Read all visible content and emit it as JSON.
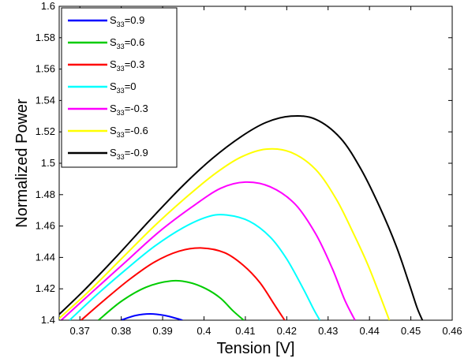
{
  "chart_data": {
    "type": "line",
    "xlabel": "Tension [V]",
    "ylabel": "Normalized Power",
    "xlim": [
      0.365,
      0.46
    ],
    "ylim": [
      1.4,
      1.6
    ],
    "xticks": [
      0.37,
      0.38,
      0.39,
      0.4,
      0.41,
      0.42,
      0.43,
      0.44,
      0.45,
      0.46
    ],
    "xtick_labels": [
      "0.37",
      "0.38",
      "0.39",
      "0.4",
      "0.41",
      "0.42",
      "0.43",
      "0.44",
      "0.45",
      "0.46"
    ],
    "yticks": [
      1.4,
      1.42,
      1.44,
      1.46,
      1.48,
      1.5,
      1.52,
      1.54,
      1.56,
      1.58,
      1.6
    ],
    "ytick_labels": [
      "1.4",
      "1.42",
      "1.44",
      "1.46",
      "1.48",
      "1.5",
      "1.52",
      "1.54",
      "1.56",
      "1.58",
      "1.6"
    ],
    "grid": false,
    "legend_position": "top-left",
    "series": [
      {
        "name_base": "S",
        "name_sub": "33",
        "name_value": "=0.9",
        "color": "#0000ff",
        "x": [
          0.3799,
          0.3835,
          0.387,
          0.3905,
          0.3935,
          0.3948
        ],
        "y": [
          1.4,
          1.403,
          1.404,
          1.403,
          1.401,
          1.4
        ]
      },
      {
        "name_base": "S",
        "name_sub": "33",
        "name_value": "=0.6",
        "color": "#00cc00",
        "x": [
          0.3745,
          0.38,
          0.386,
          0.392,
          0.3965,
          0.4005,
          0.404,
          0.407,
          0.4096
        ],
        "y": [
          1.4,
          1.412,
          1.421,
          1.425,
          1.424,
          1.42,
          1.414,
          1.406,
          1.4
        ]
      },
      {
        "name_base": "S",
        "name_sub": "33",
        "name_value": "=0.3",
        "color": "#ff0000",
        "x": [
          0.3703,
          0.376,
          0.382,
          0.388,
          0.394,
          0.3995,
          0.405,
          0.4095,
          0.4135,
          0.417,
          0.4195
        ],
        "y": [
          1.4,
          1.413,
          1.426,
          1.437,
          1.444,
          1.446,
          1.443,
          1.435,
          1.424,
          1.41,
          1.4
        ]
      },
      {
        "name_base": "S",
        "name_sub": "33",
        "name_value": "=0",
        "color": "#00ffff",
        "x": [
          0.3675,
          0.374,
          0.381,
          0.388,
          0.395,
          0.401,
          0.4055,
          0.411,
          0.416,
          0.42,
          0.424,
          0.4265,
          0.428
        ],
        "y": [
          1.4,
          1.416,
          1.432,
          1.447,
          1.459,
          1.466,
          1.467,
          1.463,
          1.453,
          1.439,
          1.42,
          1.407,
          1.4
        ]
      },
      {
        "name_base": "S",
        "name_sub": "33",
        "name_value": "=-0.3",
        "color": "#ff00ff",
        "x": [
          0.3655,
          0.373,
          0.381,
          0.389,
          0.397,
          0.404,
          0.41,
          0.416,
          0.422,
          0.427,
          0.431,
          0.434,
          0.4365
        ],
        "y": [
          1.4,
          1.418,
          1.437,
          1.456,
          1.472,
          1.484,
          1.488,
          1.485,
          1.474,
          1.455,
          1.433,
          1.413,
          1.4
        ]
      },
      {
        "name_base": "S",
        "name_sub": "33",
        "name_value": "=-0.6",
        "color": "#ffff00",
        "x": [
          0.3645,
          0.372,
          0.38,
          0.388,
          0.396,
          0.403,
          0.409,
          0.415,
          0.421,
          0.427,
          0.432,
          0.436,
          0.4395,
          0.4425,
          0.4448
        ],
        "y": [
          1.4,
          1.418,
          1.439,
          1.46,
          1.479,
          1.494,
          1.504,
          1.509,
          1.507,
          1.496,
          1.477,
          1.456,
          1.436,
          1.416,
          1.4
        ]
      },
      {
        "name_base": "S",
        "name_sub": "33",
        "name_value": "=-0.9",
        "color": "#000000",
        "x": [
          0.3635,
          0.371,
          0.379,
          0.387,
          0.395,
          0.402,
          0.409,
          0.415,
          0.421,
          0.427,
          0.433,
          0.438,
          0.4425,
          0.4465,
          0.4495,
          0.4515,
          0.4528
        ],
        "y": [
          1.4,
          1.419,
          1.441,
          1.464,
          1.486,
          1.503,
          1.517,
          1.526,
          1.53,
          1.528,
          1.516,
          1.496,
          1.472,
          1.447,
          1.424,
          1.408,
          1.4
        ]
      }
    ]
  }
}
